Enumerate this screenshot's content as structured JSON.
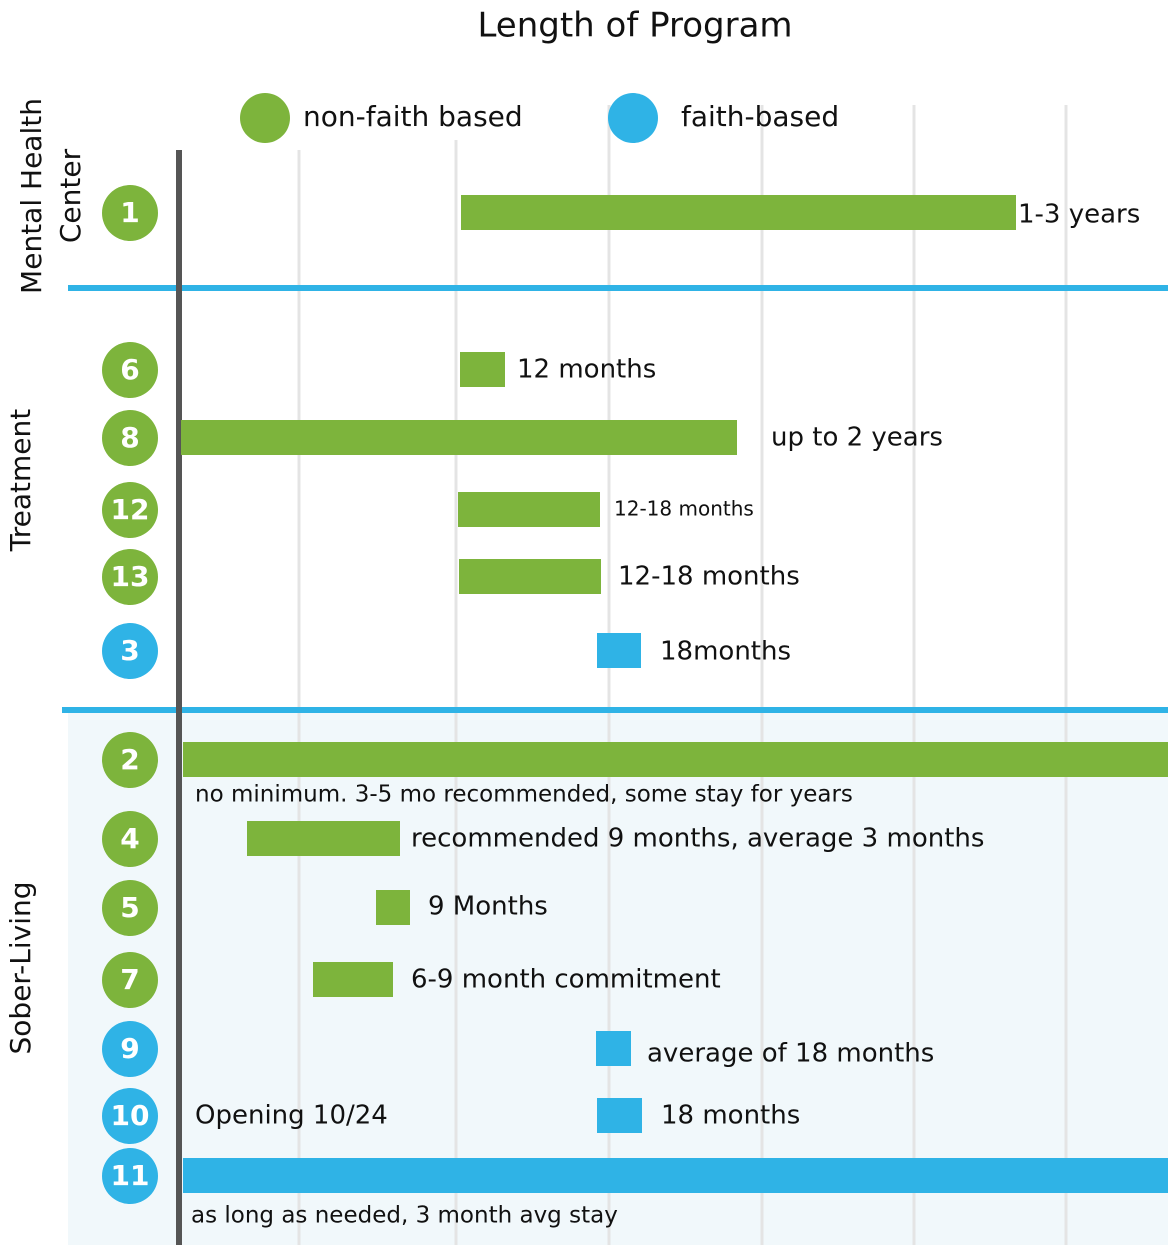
{
  "title": "Length of Program",
  "legend": [
    "non-faith based",
    "faith-based"
  ],
  "sections": [
    {
      "label": [
        "Mental Health",
        "Center"
      ],
      "rows": [
        {
          "id": "1",
          "label": "1-3 years"
        }
      ]
    },
    {
      "label": [
        "Treatment"
      ],
      "rows": [
        {
          "id": "6",
          "label": "12 months"
        },
        {
          "id": "8",
          "label": "up to 2 years"
        },
        {
          "id": "12",
          "label": "12-18 months"
        },
        {
          "id": "13",
          "label": "12-18 months"
        },
        {
          "id": "3",
          "label": "18months"
        }
      ]
    },
    {
      "label": [
        "Sober-Living"
      ],
      "rows": [
        {
          "id": "2",
          "label": "no minimum. 3-5 mo recommended, some stay for years"
        },
        {
          "id": "4",
          "label": "recommended 9 months, average 3 months"
        },
        {
          "id": "5",
          "label": "9 Months"
        },
        {
          "id": "7",
          "label": "6-9 month commitment"
        },
        {
          "id": "9",
          "label": "average of 18 months"
        },
        {
          "id": "10",
          "label": "18 months",
          "note": "Opening 10/24"
        },
        {
          "id": "11",
          "label": "as long as needed, 3 month avg stay"
        }
      ]
    }
  ]
}
